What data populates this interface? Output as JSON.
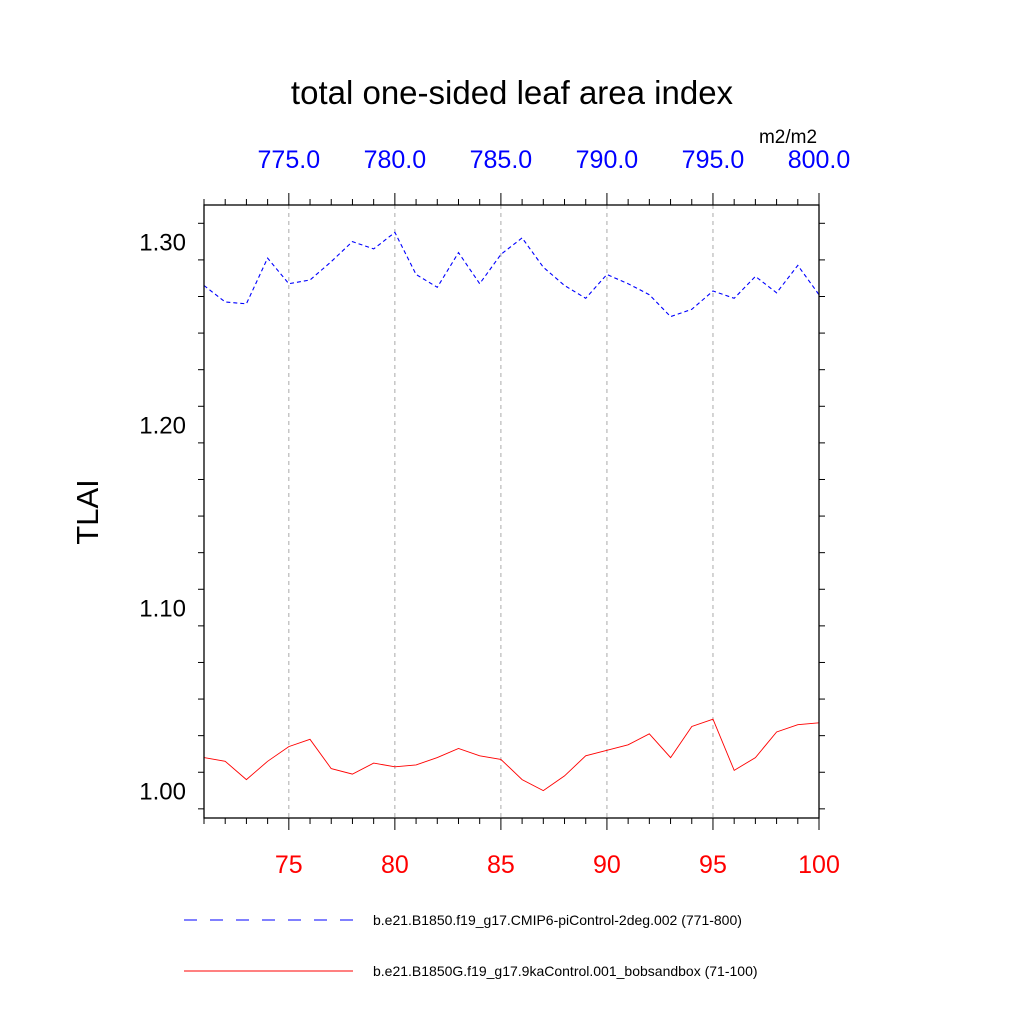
{
  "colors": {
    "top_axis": "#0000ff",
    "bottom_axis": "#ff0000",
    "series_blue": "#0000ff",
    "series_red": "#ff0000",
    "gridlines": "#aaaaaa"
  },
  "chart_data": {
    "type": "line",
    "title": "total one-sided leaf area index",
    "units": "m2/m2",
    "ylabel": "TLAI",
    "ylim": [
      0.985,
      1.32
    ],
    "yticks": [
      1.0,
      1.1,
      1.2,
      1.3
    ],
    "ytick_labels": [
      "1.00",
      "1.10",
      "1.20",
      "1.30"
    ],
    "grid": "vertical dashed at major x ticks",
    "legend_position": "bottom",
    "x_bottom": {
      "xlim": [
        71,
        100
      ],
      "ticks": [
        75,
        80,
        85,
        90,
        95,
        100
      ],
      "tick_labels": [
        "75",
        "80",
        "85",
        "90",
        "95",
        "100"
      ]
    },
    "x_top": {
      "xlim": [
        771,
        800
      ],
      "ticks": [
        775,
        780,
        785,
        790,
        795,
        800
      ],
      "tick_labels": [
        "775.0",
        "780.0",
        "785.0",
        "790.0",
        "795.0",
        "800.0"
      ]
    },
    "series": [
      {
        "name": "b.e21.B1850.f19_g17.CMIP6-piControl-2deg.002 (771-800)",
        "axis": "top",
        "style": "dashed",
        "color": "#0000ff",
        "x": [
          771,
          772,
          773,
          774,
          775,
          776,
          777,
          778,
          779,
          780,
          781,
          782,
          783,
          784,
          785,
          786,
          787,
          788,
          789,
          790,
          791,
          792,
          793,
          794,
          795,
          796,
          797,
          798,
          799,
          800
        ],
        "values": [
          1.276,
          1.267,
          1.266,
          1.291,
          1.277,
          1.279,
          1.289,
          1.3,
          1.296,
          1.305,
          1.282,
          1.275,
          1.294,
          1.277,
          1.293,
          1.302,
          1.286,
          1.276,
          1.269,
          1.282,
          1.277,
          1.271,
          1.259,
          1.263,
          1.273,
          1.269,
          1.281,
          1.272,
          1.287,
          1.271
        ]
      },
      {
        "name": "b.e21.B1850G.f19_g17.9kaControl.001_bobsandbox (71-100)",
        "axis": "bottom",
        "style": "solid",
        "color": "#ff0000",
        "x": [
          71,
          72,
          73,
          74,
          75,
          76,
          77,
          78,
          79,
          80,
          81,
          82,
          83,
          84,
          85,
          86,
          87,
          88,
          89,
          90,
          91,
          92,
          93,
          94,
          95,
          96,
          97,
          98,
          99,
          100
        ],
        "values": [
          1.018,
          1.016,
          1.006,
          1.016,
          1.024,
          1.028,
          1.012,
          1.009,
          1.015,
          1.013,
          1.014,
          1.018,
          1.023,
          1.019,
          1.017,
          1.006,
          1.0,
          1.008,
          1.019,
          1.022,
          1.025,
          1.031,
          1.018,
          1.035,
          1.039,
          1.011,
          1.018,
          1.032,
          1.036,
          1.037
        ]
      }
    ]
  }
}
